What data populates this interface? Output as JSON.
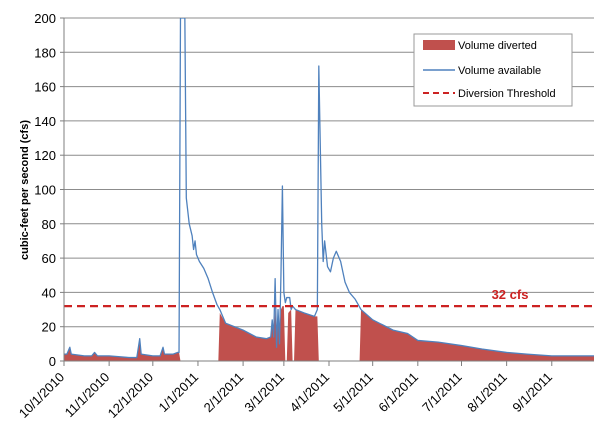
{
  "chart_data": {
    "type": "area",
    "title": "",
    "xlabel": "",
    "ylabel": "cubic-feet per second (cfs)",
    "ylim": [
      0,
      200
    ],
    "xlim": [
      "2010-10-01",
      "2011-09-30"
    ],
    "yticks": [
      0,
      20,
      40,
      60,
      80,
      100,
      120,
      140,
      160,
      180,
      200
    ],
    "xtick_labels": [
      "10/1/2010",
      "11/1/2010",
      "12/1/2010",
      "1/1/2011",
      "2/1/2011",
      "3/1/2011",
      "4/1/2011",
      "5/1/2011",
      "6/1/2011",
      "7/1/2011",
      "8/1/2011",
      "9/1/2011"
    ],
    "xtick_dates": [
      "2010-10-01",
      "2010-11-01",
      "2010-12-01",
      "2011-01-01",
      "2011-02-01",
      "2011-03-01",
      "2011-04-01",
      "2011-05-01",
      "2011-06-01",
      "2011-07-01",
      "2011-08-01",
      "2011-09-01"
    ],
    "grid": true,
    "legend_position": "top-right",
    "threshold": {
      "value": 32,
      "label": "32 cfs",
      "name": "Diversion Threshold",
      "color": "#cc2222"
    },
    "series": [
      {
        "name": "Volume diverted",
        "kind": "area",
        "color": "#c0504d",
        "points": [
          [
            "2010-10-01",
            4
          ],
          [
            "2010-10-03",
            4
          ],
          [
            "2010-10-05",
            8
          ],
          [
            "2010-10-06",
            4
          ],
          [
            "2010-10-15",
            3
          ],
          [
            "2010-10-20",
            3
          ],
          [
            "2010-10-22",
            5
          ],
          [
            "2010-10-24",
            3
          ],
          [
            "2010-11-01",
            3
          ],
          [
            "2010-11-15",
            2
          ],
          [
            "2010-11-20",
            2
          ],
          [
            "2010-11-22",
            13
          ],
          [
            "2010-11-23",
            4
          ],
          [
            "2010-12-01",
            3
          ],
          [
            "2010-12-06",
            3
          ],
          [
            "2010-12-08",
            8
          ],
          [
            "2010-12-09",
            4
          ],
          [
            "2010-12-15",
            4
          ],
          [
            "2010-12-18",
            5
          ],
          [
            "2010-12-19",
            5
          ],
          [
            "2010-12-20",
            0
          ],
          [
            "2011-01-15",
            0
          ],
          [
            "2011-01-16",
            28
          ],
          [
            "2011-01-20",
            22
          ],
          [
            "2011-02-01",
            18
          ],
          [
            "2011-02-10",
            14
          ],
          [
            "2011-02-17",
            13
          ],
          [
            "2011-02-20",
            14
          ],
          [
            "2011-02-21",
            24
          ],
          [
            "2011-02-22",
            14
          ],
          [
            "2011-02-23",
            30
          ],
          [
            "2011-02-24",
            8
          ],
          [
            "2011-02-25",
            28
          ],
          [
            "2011-02-26",
            10
          ],
          [
            "2011-02-27",
            30
          ],
          [
            "2011-02-28",
            32
          ],
          [
            "2011-03-01",
            32
          ],
          [
            "2011-03-02",
            0
          ],
          [
            "2011-03-03",
            0
          ],
          [
            "2011-03-04",
            28
          ],
          [
            "2011-03-06",
            30
          ],
          [
            "2011-03-07",
            0
          ],
          [
            "2011-03-08",
            0
          ],
          [
            "2011-03-09",
            30
          ],
          [
            "2011-03-15",
            28
          ],
          [
            "2011-03-22",
            26
          ],
          [
            "2011-03-24",
            26
          ],
          [
            "2011-03-25",
            0
          ],
          [
            "2011-04-22",
            0
          ],
          [
            "2011-04-23",
            30
          ],
          [
            "2011-05-01",
            24
          ],
          [
            "2011-05-15",
            18
          ],
          [
            "2011-05-25",
            16
          ],
          [
            "2011-06-01",
            12
          ],
          [
            "2011-06-15",
            11
          ],
          [
            "2011-07-01",
            9
          ],
          [
            "2011-07-15",
            7
          ],
          [
            "2011-08-01",
            5
          ],
          [
            "2011-08-15",
            4
          ],
          [
            "2011-09-01",
            3
          ],
          [
            "2011-09-15",
            3
          ],
          [
            "2011-09-30",
            3
          ]
        ]
      },
      {
        "name": "Volume available",
        "kind": "line",
        "color": "#4f81bd",
        "points": [
          [
            "2010-10-01",
            4
          ],
          [
            "2010-10-03",
            4
          ],
          [
            "2010-10-05",
            8
          ],
          [
            "2010-10-06",
            4
          ],
          [
            "2010-10-15",
            3
          ],
          [
            "2010-10-20",
            3
          ],
          [
            "2010-10-22",
            5
          ],
          [
            "2010-10-24",
            3
          ],
          [
            "2010-11-01",
            3
          ],
          [
            "2010-11-15",
            2
          ],
          [
            "2010-11-20",
            2
          ],
          [
            "2010-11-22",
            13
          ],
          [
            "2010-11-23",
            4
          ],
          [
            "2010-12-01",
            3
          ],
          [
            "2010-12-06",
            3
          ],
          [
            "2010-12-08",
            8
          ],
          [
            "2010-12-09",
            4
          ],
          [
            "2010-12-15",
            4
          ],
          [
            "2010-12-18",
            5
          ],
          [
            "2010-12-19",
            5
          ],
          [
            "2010-12-20",
            200
          ],
          [
            "2010-12-23",
            200
          ],
          [
            "2010-12-24",
            95
          ],
          [
            "2010-12-26",
            80
          ],
          [
            "2010-12-28",
            73
          ],
          [
            "2010-12-29",
            65
          ],
          [
            "2010-12-30",
            70
          ],
          [
            "2010-12-31",
            62
          ],
          [
            "2011-01-02",
            58
          ],
          [
            "2011-01-05",
            54
          ],
          [
            "2011-01-08",
            48
          ],
          [
            "2011-01-11",
            40
          ],
          [
            "2011-01-14",
            33
          ],
          [
            "2011-01-16",
            30
          ],
          [
            "2011-01-20",
            22
          ],
          [
            "2011-02-01",
            18
          ],
          [
            "2011-02-10",
            14
          ],
          [
            "2011-02-17",
            13
          ],
          [
            "2011-02-20",
            14
          ],
          [
            "2011-02-21",
            24
          ],
          [
            "2011-02-22",
            14
          ],
          [
            "2011-02-23",
            48
          ],
          [
            "2011-02-24",
            8
          ],
          [
            "2011-02-25",
            30
          ],
          [
            "2011-02-26",
            10
          ],
          [
            "2011-02-27",
            50
          ],
          [
            "2011-02-28",
            102
          ],
          [
            "2011-03-01",
            40
          ],
          [
            "2011-03-02",
            34
          ],
          [
            "2011-03-03",
            37
          ],
          [
            "2011-03-05",
            37
          ],
          [
            "2011-03-06",
            30
          ],
          [
            "2011-03-07",
            32
          ],
          [
            "2011-03-09",
            30
          ],
          [
            "2011-03-15",
            28
          ],
          [
            "2011-03-22",
            26
          ],
          [
            "2011-03-24",
            30
          ],
          [
            "2011-03-25",
            172
          ],
          [
            "2011-03-27",
            80
          ],
          [
            "2011-03-28",
            58
          ],
          [
            "2011-03-29",
            70
          ],
          [
            "2011-03-31",
            55
          ],
          [
            "2011-04-02",
            52
          ],
          [
            "2011-04-04",
            60
          ],
          [
            "2011-04-06",
            64
          ],
          [
            "2011-04-09",
            58
          ],
          [
            "2011-04-12",
            46
          ],
          [
            "2011-04-15",
            40
          ],
          [
            "2011-04-19",
            36
          ],
          [
            "2011-04-23",
            30
          ],
          [
            "2011-05-01",
            24
          ],
          [
            "2011-05-15",
            18
          ],
          [
            "2011-05-25",
            16
          ],
          [
            "2011-06-01",
            12
          ],
          [
            "2011-06-15",
            11
          ],
          [
            "2011-07-01",
            9
          ],
          [
            "2011-07-15",
            7
          ],
          [
            "2011-08-01",
            5
          ],
          [
            "2011-08-15",
            4
          ],
          [
            "2011-09-01",
            3
          ],
          [
            "2011-09-15",
            3
          ],
          [
            "2011-09-30",
            3
          ]
        ]
      }
    ]
  }
}
